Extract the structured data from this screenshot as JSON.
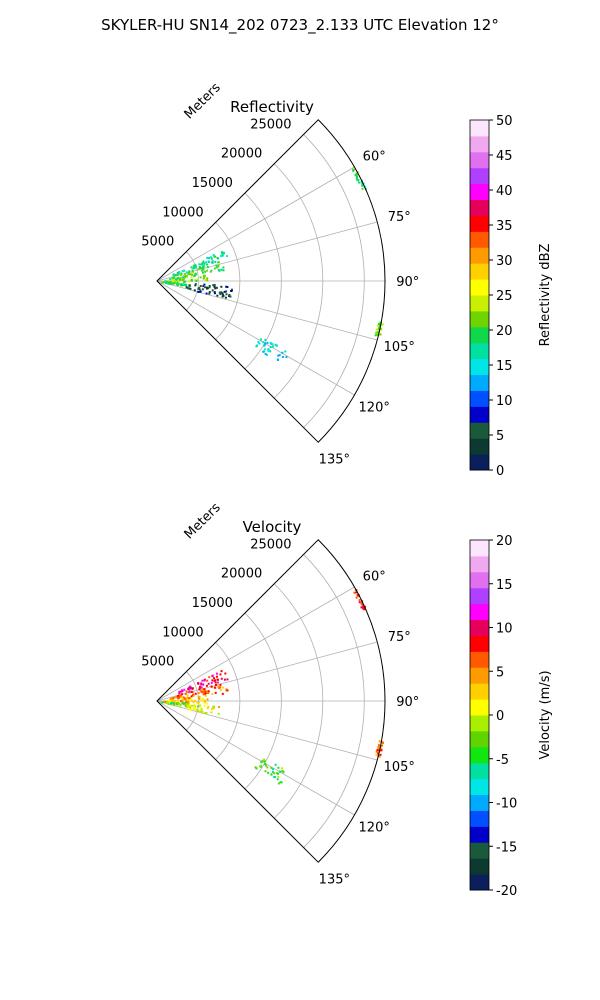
{
  "figure": {
    "title": "SKYLER-HU  SN14_202  0723_2.133 UTC Elevation 12°"
  },
  "chart_data": [
    {
      "type": "polar-sector",
      "title": "Reflectivity",
      "range_label": "Meters",
      "r_ticks": [
        "5000",
        "10000",
        "15000",
        "20000",
        "25000"
      ],
      "r_max": 27500,
      "theta_range_deg": [
        45,
        135
      ],
      "theta_ticks": [
        "60°",
        "75°",
        "90°",
        "105°",
        "120°",
        "135°"
      ],
      "colorbar": {
        "label": "Reflectivity dBZ",
        "min": 0,
        "max": 50,
        "ticks": [
          "0",
          "5",
          "10",
          "15",
          "20",
          "25",
          "30",
          "35",
          "40",
          "45",
          "50"
        ]
      },
      "echoes": [
        {
          "theta_deg": [
            64,
            70
          ],
          "r": [
            2000,
            9000
          ],
          "value": 17
        },
        {
          "theta_deg": [
            70,
            82
          ],
          "r": [
            1500,
            8500
          ],
          "value": 20
        },
        {
          "theta_deg": [
            82,
            90
          ],
          "r": [
            800,
            6000
          ],
          "value": 22
        },
        {
          "theta_deg": [
            90,
            99
          ],
          "r": [
            500,
            3500
          ],
          "value": 19
        },
        {
          "theta_deg": [
            93,
            104
          ],
          "r": [
            3500,
            9000
          ],
          "value": 5
        },
        {
          "theta_deg": [
            60,
            66
          ],
          "r": [
            27000,
            27500
          ],
          "value": 19
        },
        {
          "theta_deg": [
            100,
            104
          ],
          "r": [
            27000,
            27600
          ],
          "value": 21
        },
        {
          "theta_deg": [
            118,
            124
          ],
          "r": [
            14000,
            18000
          ],
          "value": 15
        }
      ]
    },
    {
      "type": "polar-sector",
      "title": "Velocity",
      "range_label": "Meters",
      "r_ticks": [
        "5000",
        "10000",
        "15000",
        "20000",
        "25000"
      ],
      "r_max": 27500,
      "theta_range_deg": [
        45,
        135
      ],
      "theta_ticks": [
        "60°",
        "75°",
        "90°",
        "105°",
        "120°",
        "135°"
      ],
      "colorbar": {
        "label": "Velocity (m/s)",
        "min": -20,
        "max": 20,
        "ticks": [
          "-20",
          "-15",
          "-10",
          "-5",
          "0",
          "5",
          "10",
          "15",
          "20"
        ]
      },
      "echoes": [
        {
          "theta_deg": [
            64,
            72
          ],
          "r": [
            2500,
            9000
          ],
          "value": 10
        },
        {
          "theta_deg": [
            72,
            84
          ],
          "r": [
            1500,
            8500
          ],
          "value": 6
        },
        {
          "theta_deg": [
            84,
            92
          ],
          "r": [
            700,
            6000
          ],
          "value": 3
        },
        {
          "theta_deg": [
            92,
            100
          ],
          "r": [
            500,
            3500
          ],
          "value": -3
        },
        {
          "theta_deg": [
            94,
            104
          ],
          "r": [
            3500,
            7500
          ],
          "value": 1
        },
        {
          "theta_deg": [
            60,
            66
          ],
          "r": [
            27000,
            27500
          ],
          "value": 8
        },
        {
          "theta_deg": [
            100,
            104
          ],
          "r": [
            27000,
            27600
          ],
          "value": 6
        },
        {
          "theta_deg": [
            118,
            124
          ],
          "r": [
            14000,
            18000
          ],
          "value": -4
        }
      ]
    }
  ],
  "colors": {
    "reflectivity_stops": [
      "#0a1f5c",
      "#0c3a30",
      "#1a5a3a",
      "#0000c8",
      "#0050ff",
      "#00aaff",
      "#00e5e5",
      "#00e0a0",
      "#11d84a",
      "#6fd400",
      "#c8f000",
      "#ffff00",
      "#ffd000",
      "#ff9a00",
      "#ff5a00",
      "#ff0000",
      "#e6005c",
      "#ff00ff",
      "#b040ff",
      "#e070f0",
      "#f0a8f0",
      "#fde6fd"
    ],
    "velocity_stops": [
      "#0a1f5c",
      "#0c3a30",
      "#1a5a3a",
      "#0000c8",
      "#0050ff",
      "#00aaff",
      "#00e5e5",
      "#00e0a0",
      "#11e611",
      "#60d400",
      "#a8f000",
      "#ffff00",
      "#ffd000",
      "#ff9a00",
      "#ff5a00",
      "#ff0000",
      "#e6005c",
      "#ff00ff",
      "#b040ff",
      "#e070f0",
      "#f0a8f0",
      "#fde6fd"
    ]
  }
}
